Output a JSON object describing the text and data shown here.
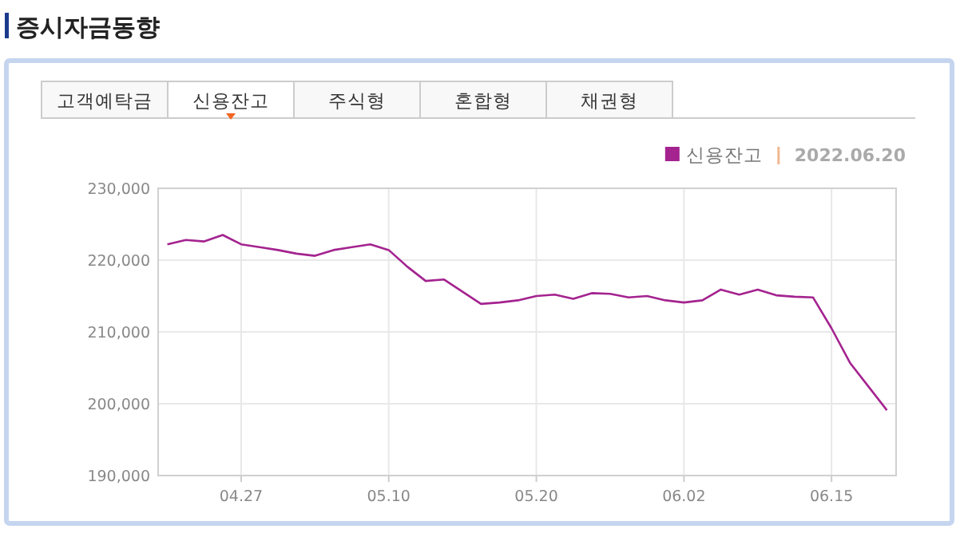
{
  "chart_data": {
    "type": "line",
    "title": "증시자금동향",
    "annotations": [
      "고객예탁금",
      "신용잔고",
      "주식형",
      "혼합형",
      "채권형",
      "2022.06.20"
    ],
    "categories": [
      null,
      null,
      null,
      null,
      "04.27",
      null,
      null,
      null,
      null,
      null,
      null,
      null,
      "05.10",
      null,
      null,
      null,
      null,
      null,
      null,
      null,
      "05.20",
      null,
      null,
      null,
      null,
      null,
      null,
      null,
      "06.02",
      null,
      null,
      null,
      null,
      null,
      null,
      null,
      "06.15",
      null,
      null,
      null
    ],
    "series": [
      {
        "name": "신용잔고",
        "color": "#a4238f",
        "values": [
          222200,
          222800,
          222600,
          223500,
          222200,
          221800,
          221400,
          220900,
          220600,
          221400,
          221800,
          222200,
          221400,
          219100,
          217100,
          217300,
          215600,
          213900,
          214100,
          214400,
          215000,
          215200,
          214600,
          215400,
          215300,
          214800,
          215000,
          214400,
          214100,
          214400,
          215900,
          215200,
          215900,
          215100,
          214900,
          214800,
          210500,
          205700,
          202400,
          199100
        ]
      }
    ],
    "ylim": [
      190000,
      230000
    ],
    "yticks": [
      {
        "value": 190000,
        "label": "190,000"
      },
      {
        "value": 200000,
        "label": "200,000"
      },
      {
        "value": 210000,
        "label": "210,000"
      },
      {
        "value": 220000,
        "label": "220,000"
      },
      {
        "value": 230000,
        "label": "230,000"
      }
    ],
    "grid": true,
    "legend": "top right",
    "marker": "none",
    "line_style": "solid"
  }
}
